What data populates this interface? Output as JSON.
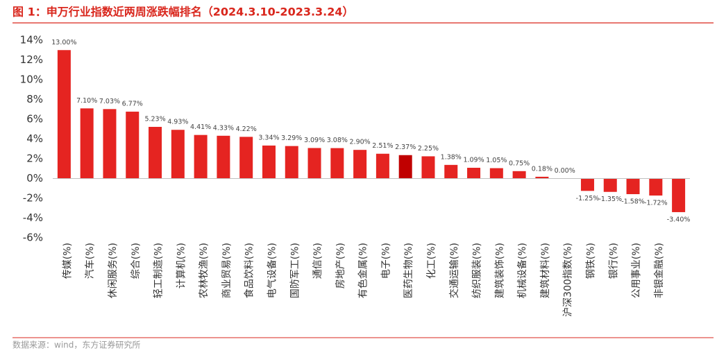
{
  "header": {
    "title": "图 1：申万行业指数近两周涨跌幅排名（2024.3.10-2023.3.24）"
  },
  "chart_data": {
    "type": "bar",
    "categories": [
      "传媒(%)",
      "汽车(%)",
      "休闲服务(%)",
      "综合(%)",
      "轻工制造(%)",
      "计算机(%)",
      "农林牧渔(%)",
      "商业贸易(%)",
      "食品饮料(%)",
      "电气设备(%)",
      "国防军工(%)",
      "通信(%)",
      "房地产(%)",
      "有色金属(%)",
      "电子(%)",
      "医药生物(%)",
      "化工(%)",
      "交通运输(%)",
      "纺织服装(%)",
      "建筑装饰(%)",
      "机械设备(%)",
      "建筑材料(%)",
      "沪深300指数(%)",
      "钢铁(%)",
      "银行(%)",
      "公用事业(%)",
      "非银金融(%)",
      null
    ],
    "values": [
      13.0,
      7.1,
      7.03,
      6.77,
      5.23,
      4.93,
      4.41,
      4.33,
      4.22,
      3.34,
      3.29,
      3.09,
      3.08,
      2.9,
      2.51,
      2.37,
      2.25,
      1.38,
      1.09,
      1.05,
      0.75,
      0.18,
      0.0,
      -1.25,
      -1.35,
      -1.58,
      -1.72,
      -3.4
    ],
    "value_labels": [
      "13.00%",
      "7.10%",
      "7.03%",
      "6.77%",
      "5.23%",
      "4.93%",
      "4.41%",
      "4.33%",
      "4.22%",
      "3.34%",
      "3.29%",
      "3.09%",
      "3.08%",
      "2.90%",
      "2.51%",
      "2.37%",
      "2.25%",
      "1.38%",
      "1.09%",
      "1.05%",
      "0.75%",
      "0.18%",
      "0.00%",
      "-1.25%",
      "-1.35%",
      "-1.58%",
      "-1.72%",
      "-3.40%"
    ],
    "colors": [
      "#e52421",
      "#e52421",
      "#e52421",
      "#e52421",
      "#e52421",
      "#e52421",
      "#e52421",
      "#e52421",
      "#e52421",
      "#e52421",
      "#e52421",
      "#e52421",
      "#e52421",
      "#e52421",
      "#e52421",
      "#c00000",
      "#e52421",
      "#e52421",
      "#e52421",
      "#e52421",
      "#e52421",
      "#e52421",
      "#e52421",
      "#e52421",
      "#e52421",
      "#e52421",
      "#e52421",
      "#e52421"
    ],
    "ylim": [
      -6,
      14
    ],
    "yticks": [
      {
        "value": -6,
        "label": "-6%"
      },
      {
        "value": -4,
        "label": "-4%"
      },
      {
        "value": -2,
        "label": "-2%"
      },
      {
        "value": 0,
        "label": "0%"
      },
      {
        "value": 2,
        "label": "2%"
      },
      {
        "value": 4,
        "label": "4%"
      },
      {
        "value": 6,
        "label": "6%"
      },
      {
        "value": 8,
        "label": "8%"
      },
      {
        "value": 10,
        "label": "10%"
      },
      {
        "value": 12,
        "label": "12%"
      },
      {
        "value": 14,
        "label": "14%"
      }
    ],
    "grid": false
  },
  "footer": {
    "source": "数据来源：wind，东方证券研究所"
  }
}
